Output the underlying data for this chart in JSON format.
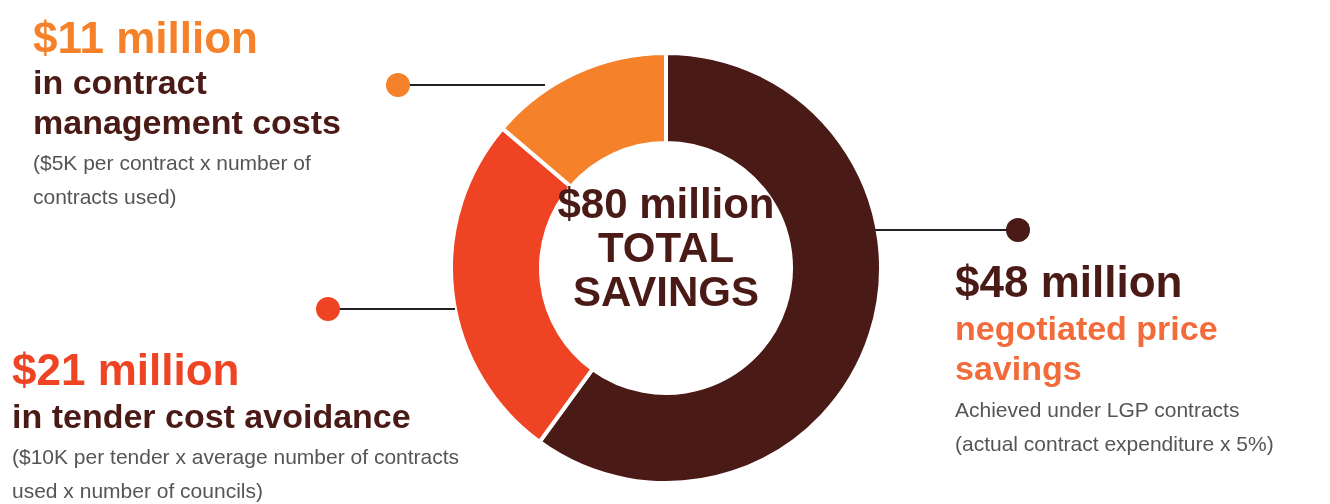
{
  "chart_data": {
    "type": "donut",
    "title": "$80 million TOTAL SAVINGS",
    "categories": [
      "negotiated price savings",
      "in tender cost avoidance",
      "in contract management costs"
    ],
    "values": [
      48,
      21,
      11
    ],
    "colors": [
      "#4a1a17",
      "#ee4423",
      "#f5822a"
    ],
    "value_labels": [
      "$48 million",
      "$21 million",
      "$11 million"
    ],
    "annotations": [
      "Achieved under LGP contracts (actual contract expenditure x 5%)",
      "($10K per tender x average number of contracts used x number of councils)",
      "($5K per contract x number of contracts used)"
    ]
  }
}
